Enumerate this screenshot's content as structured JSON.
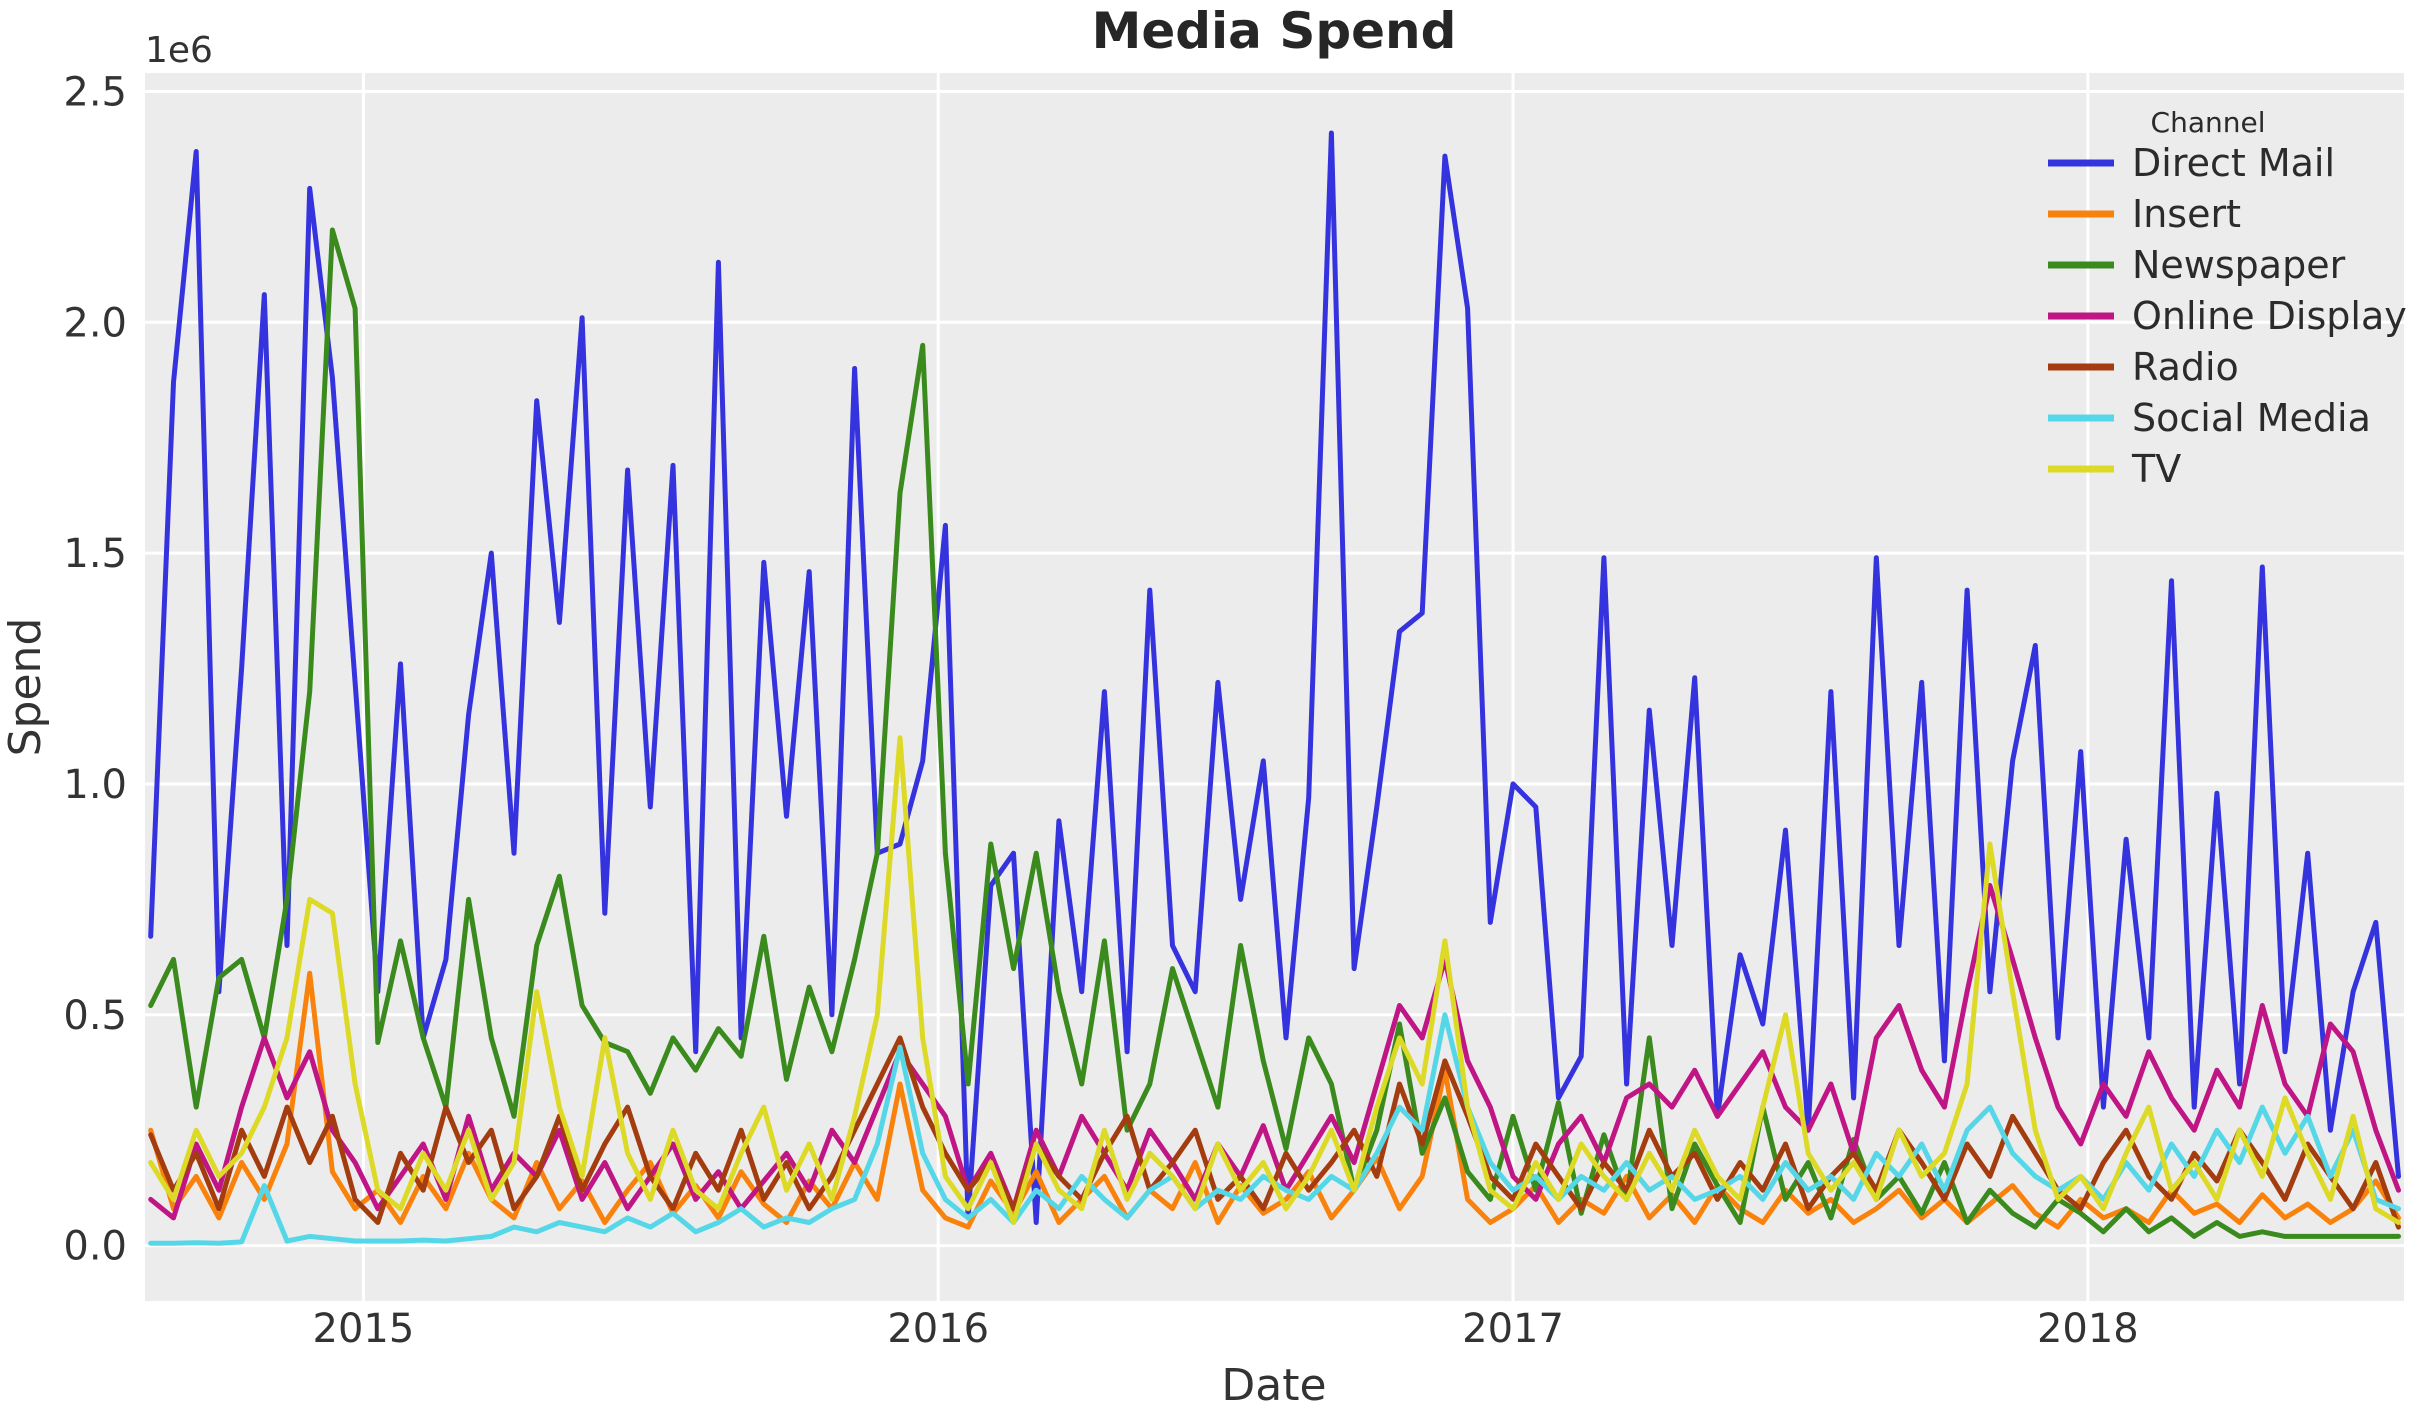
{
  "figure": {
    "title": "Media Spend",
    "x_axis_label": "Date",
    "y_axis_label": "Spend",
    "y_offset_label": "1e6",
    "background_color": "#ffffff",
    "plot_background_color": "#ececec",
    "grid_color": "#ffffff",
    "text_color": "#333333"
  },
  "legend": {
    "title": "Channel"
  },
  "chart_data": {
    "type": "line",
    "title": "Media Spend",
    "xlabel": "Date",
    "ylabel": "Spend",
    "y_axis_offset_text": "1e6",
    "y_unit": "dollars (axis shown in millions, 1e6)",
    "x_unit": "date as decimal year, roughly biweekly samples of a weekly spend series",
    "xlim": [
      2014.62,
      2018.55
    ],
    "ylim": [
      -0.12,
      2.54
    ],
    "xticks": [
      2015,
      2016,
      2017,
      2018
    ],
    "ytick_labels": [
      "0.0",
      "0.5",
      "1.0",
      "1.5",
      "2.0",
      "2.5"
    ],
    "yticks": [
      0.0,
      0.5,
      1.0,
      1.5,
      2.0,
      2.5
    ],
    "grid": true,
    "legend_position": "upper right",
    "legend_title": "Channel",
    "x": {
      "start": 2014.63,
      "step": 0.0395,
      "count": 100
    },
    "series": [
      {
        "name": "Direct Mail",
        "color": "#3533dd",
        "values_e6": [
          0.67,
          1.87,
          2.37,
          0.55,
          1.25,
          2.06,
          0.65,
          2.29,
          1.88,
          1.22,
          0.55,
          1.26,
          0.45,
          0.62,
          1.15,
          1.5,
          0.85,
          1.83,
          1.35,
          2.01,
          0.72,
          1.68,
          0.95,
          1.69,
          0.42,
          2.13,
          0.45,
          1.48,
          0.93,
          1.46,
          0.5,
          1.9,
          0.85,
          0.87,
          1.05,
          1.56,
          0.06,
          0.78,
          0.85,
          0.05,
          0.92,
          0.55,
          1.2,
          0.42,
          1.42,
          0.65,
          0.55,
          1.22,
          0.75,
          1.05,
          0.45,
          0.97,
          2.41,
          0.6,
          0.95,
          1.33,
          1.37,
          2.36,
          2.03,
          0.7,
          1.0,
          0.95,
          0.32,
          0.41,
          1.49,
          0.35,
          1.16,
          0.65,
          1.23,
          0.28,
          0.63,
          0.48,
          0.9,
          0.25,
          1.2,
          0.32,
          1.49,
          0.65,
          1.22,
          0.4,
          1.42,
          0.55,
          1.05,
          1.3,
          0.45,
          1.07,
          0.3,
          0.88,
          0.45,
          1.44,
          0.3,
          0.98,
          0.35,
          1.47,
          0.42,
          0.85,
          0.25,
          0.55,
          0.7,
          0.15
        ]
      },
      {
        "name": "Insert",
        "color": "#f9820d",
        "values_e6": [
          0.25,
          0.08,
          0.15,
          0.06,
          0.18,
          0.1,
          0.22,
          0.59,
          0.16,
          0.08,
          0.12,
          0.05,
          0.15,
          0.08,
          0.2,
          0.1,
          0.06,
          0.18,
          0.08,
          0.14,
          0.05,
          0.12,
          0.18,
          0.07,
          0.13,
          0.06,
          0.16,
          0.09,
          0.05,
          0.14,
          0.08,
          0.18,
          0.1,
          0.35,
          0.12,
          0.06,
          0.04,
          0.14,
          0.07,
          0.16,
          0.05,
          0.1,
          0.15,
          0.06,
          0.12,
          0.08,
          0.18,
          0.05,
          0.13,
          0.07,
          0.1,
          0.16,
          0.06,
          0.12,
          0.19,
          0.08,
          0.15,
          0.38,
          0.1,
          0.05,
          0.08,
          0.13,
          0.05,
          0.1,
          0.07,
          0.15,
          0.06,
          0.11,
          0.05,
          0.13,
          0.08,
          0.05,
          0.12,
          0.07,
          0.1,
          0.05,
          0.08,
          0.12,
          0.06,
          0.1,
          0.05,
          0.09,
          0.13,
          0.07,
          0.04,
          0.1,
          0.06,
          0.08,
          0.05,
          0.12,
          0.07,
          0.09,
          0.05,
          0.11,
          0.06,
          0.09,
          0.05,
          0.08,
          0.14,
          0.06
        ]
      },
      {
        "name": "Newspaper",
        "color": "#3a8a1e",
        "values_e6": [
          0.52,
          0.62,
          0.3,
          0.58,
          0.62,
          0.45,
          0.75,
          1.2,
          2.2,
          2.03,
          0.44,
          0.66,
          0.45,
          0.3,
          0.75,
          0.45,
          0.28,
          0.65,
          0.8,
          0.52,
          0.44,
          0.42,
          0.33,
          0.45,
          0.38,
          0.47,
          0.41,
          0.67,
          0.36,
          0.56,
          0.42,
          0.62,
          0.85,
          1.63,
          1.95,
          0.85,
          0.35,
          0.87,
          0.6,
          0.85,
          0.55,
          0.35,
          0.66,
          0.25,
          0.35,
          0.6,
          0.45,
          0.3,
          0.65,
          0.4,
          0.21,
          0.45,
          0.35,
          0.12,
          0.25,
          0.48,
          0.2,
          0.32,
          0.16,
          0.1,
          0.28,
          0.12,
          0.31,
          0.07,
          0.24,
          0.1,
          0.45,
          0.08,
          0.22,
          0.13,
          0.05,
          0.3,
          0.1,
          0.18,
          0.06,
          0.23,
          0.1,
          0.15,
          0.07,
          0.18,
          0.05,
          0.12,
          0.07,
          0.04,
          0.1,
          0.07,
          0.03,
          0.08,
          0.03,
          0.06,
          0.02,
          0.05,
          0.02,
          0.03,
          0.02,
          0.02,
          0.02,
          0.02,
          0.02,
          0.02
        ]
      },
      {
        "name": "Online Display",
        "color": "#c01585",
        "values_e6": [
          0.1,
          0.06,
          0.22,
          0.12,
          0.3,
          0.45,
          0.32,
          0.42,
          0.25,
          0.18,
          0.08,
          0.15,
          0.22,
          0.1,
          0.28,
          0.12,
          0.2,
          0.15,
          0.25,
          0.1,
          0.18,
          0.08,
          0.15,
          0.22,
          0.1,
          0.16,
          0.08,
          0.14,
          0.2,
          0.12,
          0.25,
          0.18,
          0.3,
          0.42,
          0.35,
          0.28,
          0.12,
          0.2,
          0.08,
          0.25,
          0.15,
          0.28,
          0.2,
          0.12,
          0.25,
          0.18,
          0.1,
          0.22,
          0.15,
          0.26,
          0.12,
          0.2,
          0.28,
          0.18,
          0.35,
          0.52,
          0.45,
          0.62,
          0.4,
          0.3,
          0.15,
          0.1,
          0.22,
          0.28,
          0.18,
          0.32,
          0.35,
          0.3,
          0.38,
          0.28,
          0.35,
          0.42,
          0.3,
          0.25,
          0.35,
          0.2,
          0.45,
          0.52,
          0.38,
          0.3,
          0.55,
          0.78,
          0.62,
          0.45,
          0.3,
          0.22,
          0.35,
          0.28,
          0.42,
          0.32,
          0.25,
          0.38,
          0.3,
          0.52,
          0.35,
          0.28,
          0.48,
          0.42,
          0.25,
          0.12
        ]
      },
      {
        "name": "Radio",
        "color": "#a33c0f",
        "values_e6": [
          0.24,
          0.12,
          0.2,
          0.08,
          0.25,
          0.15,
          0.3,
          0.18,
          0.28,
          0.1,
          0.05,
          0.2,
          0.12,
          0.3,
          0.18,
          0.25,
          0.08,
          0.15,
          0.28,
          0.12,
          0.22,
          0.3,
          0.15,
          0.08,
          0.2,
          0.12,
          0.25,
          0.1,
          0.18,
          0.08,
          0.15,
          0.25,
          0.35,
          0.45,
          0.3,
          0.2,
          0.12,
          0.18,
          0.08,
          0.22,
          0.15,
          0.1,
          0.2,
          0.28,
          0.12,
          0.18,
          0.25,
          0.1,
          0.15,
          0.08,
          0.2,
          0.12,
          0.18,
          0.25,
          0.15,
          0.35,
          0.22,
          0.4,
          0.28,
          0.15,
          0.1,
          0.22,
          0.15,
          0.08,
          0.18,
          0.12,
          0.25,
          0.15,
          0.2,
          0.1,
          0.18,
          0.12,
          0.22,
          0.08,
          0.15,
          0.2,
          0.12,
          0.25,
          0.18,
          0.1,
          0.22,
          0.15,
          0.28,
          0.2,
          0.12,
          0.08,
          0.18,
          0.25,
          0.15,
          0.1,
          0.2,
          0.14,
          0.25,
          0.18,
          0.1,
          0.22,
          0.15,
          0.08,
          0.18,
          0.04
        ]
      },
      {
        "name": "Social Media",
        "color": "#55d7e8",
        "values_e6": [
          0.005,
          0.005,
          0.006,
          0.005,
          0.008,
          0.13,
          0.01,
          0.02,
          0.015,
          0.01,
          0.01,
          0.01,
          0.012,
          0.01,
          0.015,
          0.02,
          0.04,
          0.03,
          0.05,
          0.04,
          0.03,
          0.06,
          0.04,
          0.07,
          0.03,
          0.05,
          0.08,
          0.04,
          0.06,
          0.05,
          0.08,
          0.1,
          0.22,
          0.43,
          0.2,
          0.1,
          0.06,
          0.1,
          0.05,
          0.12,
          0.08,
          0.15,
          0.1,
          0.06,
          0.12,
          0.15,
          0.08,
          0.12,
          0.1,
          0.15,
          0.12,
          0.1,
          0.15,
          0.12,
          0.2,
          0.3,
          0.25,
          0.5,
          0.3,
          0.18,
          0.12,
          0.15,
          0.1,
          0.15,
          0.12,
          0.18,
          0.12,
          0.15,
          0.1,
          0.12,
          0.15,
          0.1,
          0.18,
          0.12,
          0.15,
          0.1,
          0.2,
          0.15,
          0.22,
          0.12,
          0.25,
          0.3,
          0.2,
          0.15,
          0.12,
          0.15,
          0.1,
          0.18,
          0.12,
          0.22,
          0.15,
          0.25,
          0.18,
          0.3,
          0.2,
          0.28,
          0.15,
          0.25,
          0.1,
          0.08
        ]
      },
      {
        "name": "TV",
        "color": "#ddd927",
        "values_e6": [
          0.18,
          0.1,
          0.25,
          0.15,
          0.2,
          0.3,
          0.45,
          0.75,
          0.72,
          0.35,
          0.12,
          0.08,
          0.2,
          0.12,
          0.25,
          0.1,
          0.18,
          0.55,
          0.3,
          0.15,
          0.45,
          0.2,
          0.1,
          0.25,
          0.12,
          0.08,
          0.2,
          0.3,
          0.12,
          0.22,
          0.1,
          0.28,
          0.5,
          1.1,
          0.45,
          0.15,
          0.08,
          0.18,
          0.05,
          0.22,
          0.12,
          0.08,
          0.25,
          0.1,
          0.2,
          0.15,
          0.08,
          0.22,
          0.12,
          0.18,
          0.08,
          0.15,
          0.25,
          0.12,
          0.3,
          0.45,
          0.35,
          0.66,
          0.3,
          0.12,
          0.08,
          0.18,
          0.1,
          0.22,
          0.15,
          0.1,
          0.2,
          0.12,
          0.25,
          0.15,
          0.1,
          0.3,
          0.5,
          0.2,
          0.12,
          0.18,
          0.1,
          0.25,
          0.15,
          0.2,
          0.35,
          0.87,
          0.55,
          0.25,
          0.1,
          0.15,
          0.08,
          0.2,
          0.3,
          0.12,
          0.18,
          0.1,
          0.25,
          0.15,
          0.32,
          0.2,
          0.1,
          0.28,
          0.08,
          0.05
        ]
      }
    ]
  }
}
